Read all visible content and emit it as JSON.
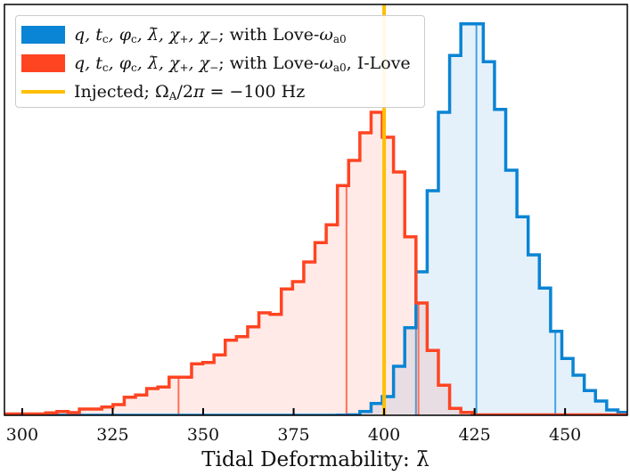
{
  "chart_data": {
    "type": "histogram",
    "title": "",
    "xlabel": "Tidal Deformability: λ̄",
    "ylabel": "",
    "xlim": [
      295.1,
      467.2
    ],
    "ylim": [
      0,
      461
    ],
    "x_ticks": [
      300,
      325,
      350,
      375,
      400,
      425,
      450
    ],
    "y_ticks": [],
    "grid": false,
    "legend_position": "top-left",
    "bin_start": 294.1,
    "bin_width": 3.1,
    "series": [
      {
        "name": "q, tc, φc, λ̄, χ+, χ−; with Love-ωa0",
        "color": "#0A84D4",
        "fill_color": "#E3F0FA",
        "quantile_color": "#3FA4E2",
        "counts": [
          0,
          0,
          0,
          0,
          0,
          0,
          0,
          0,
          0,
          0,
          0,
          0,
          0,
          0,
          0,
          0,
          0,
          0,
          0,
          0,
          0,
          0,
          0,
          0,
          0,
          0,
          0,
          0,
          0,
          0,
          0.3,
          0.5,
          4.3,
          13.3,
          21,
          55,
          98.3,
          161,
          252,
          340,
          403.7,
          439.3,
          439.3,
          396.7,
          343.3,
          275,
          222.7,
          180,
          142.7,
          94.3,
          63.7,
          45,
          27.7,
          16,
          6,
          3.3
        ],
        "quantiles": [
          408.8,
          425.5,
          447.3
        ]
      },
      {
        "name": "q, tc, φc, λ̄, χ+, χ−; with Love-ωa0, I-Love",
        "color": "#FF4422",
        "fill_color": "#FDE6E2",
        "quantile_color": "#FF7058",
        "counts": [
          1.5,
          1.5,
          1.5,
          1.5,
          2.7,
          4.3,
          3,
          7,
          7,
          9.3,
          12,
          20.3,
          22.7,
          30,
          31.7,
          42.7,
          42.7,
          57.7,
          59.3,
          67.7,
          84.3,
          88.3,
          99.3,
          115,
          113.3,
          141.7,
          150,
          172,
          193.7,
          213.7,
          257.7,
          286,
          317,
          340,
          312,
          273,
          200.3,
          126,
          72.7,
          33.7,
          7.7,
          3.3,
          0.5,
          0.5,
          0.5,
          0.5,
          0.5,
          0.5,
          0.5,
          0.5,
          0.5,
          0.5,
          0.5,
          0.5,
          0.5,
          0.5
        ],
        "quantiles": [
          343.2,
          389.6,
          409.5
        ]
      }
    ],
    "injected": {
      "name": "Injected; ΩA/2π = −100 Hz",
      "value": 400,
      "color": "#FFBF00"
    }
  },
  "legend": {
    "entries": [
      {
        "label": "q, tc, φc, λ̄, χ+, χ−; with Love-ωa0",
        "segments": [
          [
            "q, t",
            "i"
          ],
          [
            "c",
            "sub"
          ],
          [
            ", φ",
            "i"
          ],
          [
            "c",
            "sub"
          ],
          [
            ", λ̄, χ",
            "i"
          ],
          [
            "+",
            "sub"
          ],
          [
            ", χ",
            "i"
          ],
          [
            "−",
            "sub"
          ],
          [
            "; with Love-",
            ""
          ],
          [
            "ω",
            "i"
          ],
          [
            "a0",
            "sub"
          ]
        ]
      },
      {
        "label": "q, tc, φc, λ̄, χ+, χ−; with Love-ωa0, I-Love",
        "segments": [
          [
            "q, t",
            "i"
          ],
          [
            "c",
            "sub"
          ],
          [
            ", φ",
            "i"
          ],
          [
            "c",
            "sub"
          ],
          [
            ", λ̄, χ",
            "i"
          ],
          [
            "+",
            "sub"
          ],
          [
            ", χ",
            "i"
          ],
          [
            "−",
            "sub"
          ],
          [
            "; with Love-",
            ""
          ],
          [
            "ω",
            "i"
          ],
          [
            "a0",
            "sub"
          ],
          [
            ", I-Love",
            ""
          ]
        ]
      },
      {
        "label": "Injected; ΩA/2π = −100 Hz",
        "segments": [
          [
            "Injected; Ω",
            ""
          ],
          [
            "A",
            "sub"
          ],
          [
            "/2",
            ""
          ],
          [
            "π",
            "i"
          ],
          [
            " = −100 Hz",
            ""
          ]
        ]
      }
    ]
  }
}
